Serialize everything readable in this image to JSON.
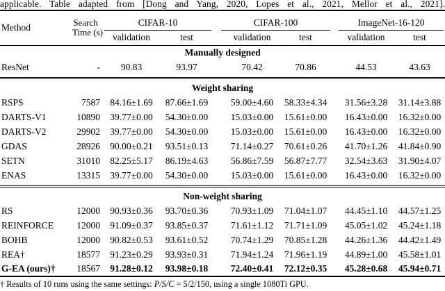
{
  "caption": "applicable. Table adapted from [Dong and Yang, 2020, Lopes et al., 2021, Mellor et al., 2021].",
  "table": {
    "header": {
      "method": "Method",
      "time_line1": "Search",
      "time_line2": "Time (s)",
      "groups": [
        "CIFAR-10",
        "CIFAR-100",
        "ImageNet-16-120"
      ],
      "sub": [
        "validation",
        "test"
      ]
    },
    "sections": [
      {
        "title": "Manually designed",
        "rows": [
          {
            "method": "ResNet",
            "time": "-",
            "bold": false,
            "values": [
              "90.83",
              "93.97",
              "70.42",
              "70.86",
              "44.53",
              "43.63"
            ]
          }
        ]
      },
      {
        "title": "Weight sharing",
        "rows": [
          {
            "method": "RSPS",
            "time": "7587",
            "bold": false,
            "values": [
              "84.16±1.69",
              "87.66±1.69",
              "59.00±4.60",
              "58.33±4.34",
              "31.56±3.28",
              "31.14±3.88"
            ]
          },
          {
            "method": "DARTS-V1",
            "time": "10890",
            "bold": false,
            "values": [
              "39.77±0.00",
              "54.30±0.00",
              "15.03±0.00",
              "15.61±0.00",
              "16.43±0.00",
              "16.32±0.00"
            ]
          },
          {
            "method": "DARTS-V2",
            "time": "29902",
            "bold": false,
            "values": [
              "39.77±0.00",
              "54.30±0.00",
              "15.03±0.00",
              "15.61±0.00",
              "16.43±0.00",
              "16.32±0.00"
            ]
          },
          {
            "method": "GDAS",
            "time": "28926",
            "bold": false,
            "values": [
              "90.00±0.21",
              "93.51±0.13",
              "71.14±0.27",
              "70.61±0.26",
              "41.70±1.26",
              "41.84±0.90"
            ]
          },
          {
            "method": "SETN",
            "time": "31010",
            "bold": false,
            "values": [
              "82.25±5.17",
              "86.19±4.63",
              "56.86±7.59",
              "56.87±7.77",
              "32.54±3.63",
              "31.90±4.07"
            ]
          },
          {
            "method": "ENAS",
            "time": "13315",
            "bold": false,
            "values": [
              "39.77±0.00",
              "54.30±0.00",
              "15.03±0.00",
              "15.61±0.00",
              "16.43±0.00",
              "16.32±0.00"
            ]
          }
        ]
      },
      {
        "title": "Non-weight sharing",
        "rows": [
          {
            "method": "RS",
            "time": "12000",
            "bold": false,
            "values": [
              "90.93±0.36",
              "93.70±0.36",
              "70.93±1.09",
              "71.04±1.07",
              "44.45±1.10",
              "44.57±1.25"
            ]
          },
          {
            "method": "REINFORCE",
            "time": "12000",
            "bold": false,
            "values": [
              "91.09±0.37",
              "93.85±0.37",
              "71.61±1.12",
              "71.71±1.09",
              "45.05±1.02",
              "45.24±1.18"
            ]
          },
          {
            "method": "BOHB",
            "time": "12000",
            "bold": false,
            "values": [
              "90.82±0.53",
              "93.61±0.52",
              "70.74±1.29",
              "70.85±1.28",
              "44.26±1.36",
              "44.42±1.49"
            ]
          },
          {
            "method": "REA†",
            "time": "18577",
            "bold": false,
            "values": [
              "91.23±0.29",
              "93.93±0.31",
              "71.94±1.24",
              "71.96±1.19",
              "44.89±1.00",
              "45.58±1.01"
            ]
          },
          {
            "method": "G-EA (ours)†",
            "time": "18567",
            "bold": true,
            "values": [
              "91.28±0.12",
              "93.98±0.18",
              "72.40±0.41",
              "72.12±0.35",
              "45.28±0.68",
              "45.94±0.71"
            ]
          }
        ]
      }
    ]
  },
  "footnote": {
    "prefix": "† Results of 10 runs using the same settings: ",
    "math_italic": "P/S/C",
    "math_rest": " = 5/2/150",
    "suffix": ", using a single 1080Ti GPU."
  }
}
